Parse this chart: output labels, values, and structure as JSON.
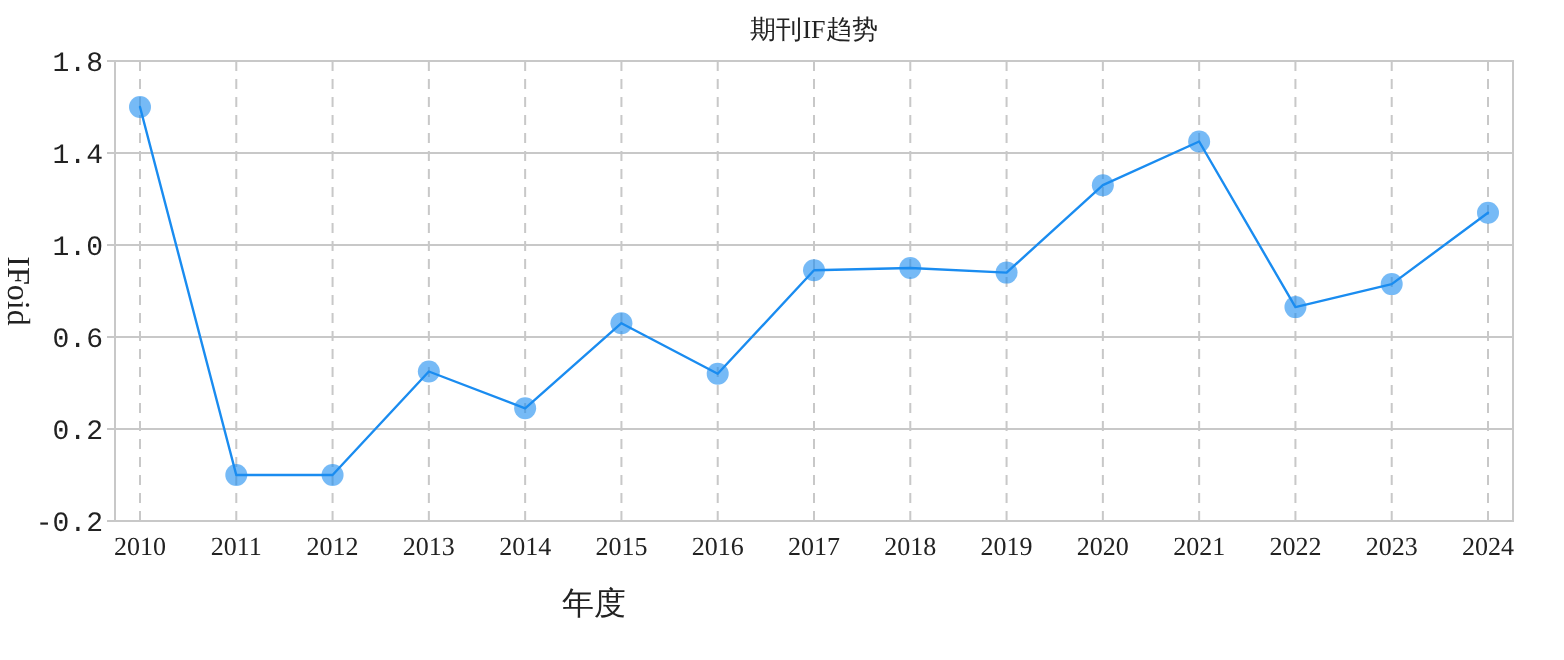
{
  "chart_data": {
    "type": "line",
    "title": "期刊IF趋势",
    "xlabel": "年度",
    "ylabel": "IFoid",
    "categories": [
      "2010",
      "2011",
      "2012",
      "2013",
      "2014",
      "2015",
      "2016",
      "2017",
      "2018",
      "2019",
      "2020",
      "2021",
      "2022",
      "2023",
      "2024"
    ],
    "series": [
      {
        "color": "#1a8cf0",
        "values": [
          1.6,
          0.0,
          0.0,
          0.45,
          0.29,
          0.66,
          0.44,
          0.89,
          0.9,
          0.88,
          1.26,
          1.45,
          0.73,
          0.83,
          1.14
        ]
      }
    ],
    "ylim": [
      -0.2,
      1.8
    ],
    "yticks": [
      -0.2,
      0.2,
      0.6,
      {
        "value": 1,
        "label": "1.0"
      },
      1.4,
      1.8
    ],
    "grid": true,
    "marker": "circle",
    "line_style": "solid"
  }
}
